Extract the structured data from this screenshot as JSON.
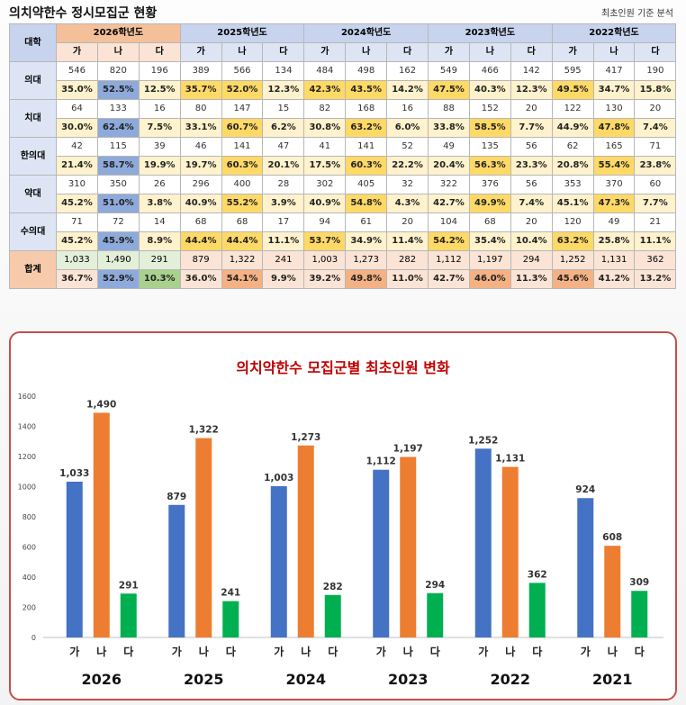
{
  "page": {
    "title": "의치약한수 정시모집군 현황",
    "note": "최초인원 기준 분석"
  },
  "table": {
    "corner": "대학",
    "year_headers": [
      "2026학년도",
      "2025학년도",
      "2024학년도",
      "2023학년도",
      "2022학년도"
    ],
    "groups": [
      "가",
      "나",
      "다"
    ],
    "rows": [
      {
        "label": "의대",
        "counts": [
          "546",
          "820",
          "196",
          "389",
          "566",
          "134",
          "484",
          "498",
          "162",
          "549",
          "466",
          "142",
          "595",
          "417",
          "190"
        ],
        "pcts": [
          "35.0%",
          "52.5%",
          "12.5%",
          "35.7%",
          "52.0%",
          "12.3%",
          "42.3%",
          "43.5%",
          "14.2%",
          "47.5%",
          "40.3%",
          "12.3%",
          "49.5%",
          "34.7%",
          "15.8%"
        ]
      },
      {
        "label": "치대",
        "counts": [
          "64",
          "133",
          "16",
          "80",
          "147",
          "15",
          "82",
          "168",
          "16",
          "88",
          "152",
          "20",
          "122",
          "130",
          "20"
        ],
        "pcts": [
          "30.0%",
          "62.4%",
          "7.5%",
          "33.1%",
          "60.7%",
          "6.2%",
          "30.8%",
          "63.2%",
          "6.0%",
          "33.8%",
          "58.5%",
          "7.7%",
          "44.9%",
          "47.8%",
          "7.4%"
        ]
      },
      {
        "label": "한의대",
        "counts": [
          "42",
          "115",
          "39",
          "46",
          "141",
          "47",
          "41",
          "141",
          "52",
          "49",
          "135",
          "56",
          "62",
          "165",
          "71"
        ],
        "pcts": [
          "21.4%",
          "58.7%",
          "19.9%",
          "19.7%",
          "60.3%",
          "20.1%",
          "17.5%",
          "60.3%",
          "22.2%",
          "20.4%",
          "56.3%",
          "23.3%",
          "20.8%",
          "55.4%",
          "23.8%"
        ]
      },
      {
        "label": "약대",
        "counts": [
          "310",
          "350",
          "26",
          "296",
          "400",
          "28",
          "302",
          "405",
          "32",
          "322",
          "376",
          "56",
          "353",
          "370",
          "60"
        ],
        "pcts": [
          "45.2%",
          "51.0%",
          "3.8%",
          "40.9%",
          "55.2%",
          "3.9%",
          "40.9%",
          "54.8%",
          "4.3%",
          "42.7%",
          "49.9%",
          "7.4%",
          "45.1%",
          "47.3%",
          "7.7%"
        ]
      },
      {
        "label": "수의대",
        "counts": [
          "71",
          "72",
          "14",
          "68",
          "68",
          "17",
          "94",
          "61",
          "20",
          "104",
          "68",
          "20",
          "120",
          "49",
          "21"
        ],
        "pcts": [
          "45.2%",
          "45.9%",
          "8.9%",
          "44.4%",
          "44.4%",
          "11.1%",
          "53.7%",
          "34.9%",
          "11.4%",
          "54.2%",
          "35.4%",
          "10.4%",
          "63.2%",
          "25.8%",
          "11.1%"
        ]
      },
      {
        "label": "합계",
        "counts": [
          "1,033",
          "1,490",
          "291",
          "879",
          "1,322",
          "241",
          "1,003",
          "1,273",
          "282",
          "1,112",
          "1,197",
          "294",
          "1,252",
          "1,131",
          "362"
        ],
        "pcts": [
          "36.7%",
          "52.9%",
          "10.3%",
          "36.0%",
          "54.1%",
          "9.9%",
          "39.2%",
          "49.8%",
          "11.0%",
          "42.7%",
          "46.0%",
          "11.3%",
          "45.6%",
          "41.2%",
          "13.2%"
        ]
      }
    ],
    "highlight_colors": {
      "header26": "#f3c09a",
      "header_other": "#c8d3ee",
      "pct_bg": "#fff2cc",
      "gold": "#ffd966",
      "blue": "#8eaadb",
      "orange": "#f4b183",
      "green": "#a9d18e"
    }
  },
  "chart_data": {
    "type": "bar",
    "title": "의치약한수 모집군별 최초인원 변화",
    "categories": [
      "2026",
      "2025",
      "2024",
      "2023",
      "2022",
      "2021"
    ],
    "group_labels": [
      "가",
      "나",
      "다"
    ],
    "series": [
      {
        "name": "가",
        "color": "#4472c4",
        "values": [
          1033,
          879,
          1003,
          1112,
          1252,
          924
        ]
      },
      {
        "name": "나",
        "color": "#ed7d31",
        "values": [
          1490,
          1322,
          1273,
          1197,
          1131,
          608
        ]
      },
      {
        "name": "다",
        "color": "#00b050",
        "values": [
          291,
          241,
          282,
          294,
          362,
          309
        ]
      }
    ],
    "value_labels": [
      [
        "1,033",
        "879",
        "1,003",
        "1,112",
        "1,252",
        "924"
      ],
      [
        "1,490",
        "1,322",
        "1,273",
        "1,197",
        "1,131",
        "608"
      ],
      [
        "291",
        "241",
        "282",
        "294",
        "362",
        "309"
      ]
    ],
    "yticks": [
      "0",
      "200",
      "400",
      "600",
      "800",
      "1000",
      "1200",
      "1400",
      "1600"
    ],
    "ylim": [
      0,
      1600
    ],
    "grid": false,
    "title_color": "#c00000"
  }
}
